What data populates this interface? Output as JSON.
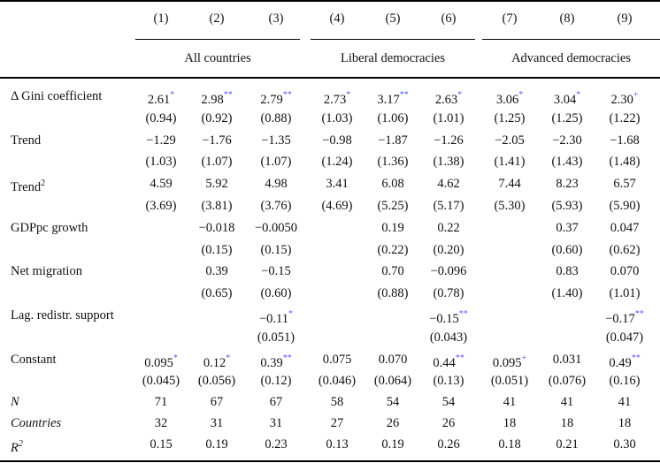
{
  "table": {
    "column_numbers": [
      "(1)",
      "(2)",
      "(3)",
      "(4)",
      "(5)",
      "(6)",
      "(7)",
      "(8)",
      "(9)"
    ],
    "column_groups": [
      {
        "label": "All countries",
        "columns": [
          1,
          2,
          3
        ]
      },
      {
        "label": "Liberal democracies",
        "columns": [
          4,
          5,
          6
        ]
      },
      {
        "label": "Advanced democracies",
        "columns": [
          7,
          8,
          9
        ]
      }
    ],
    "significance_color": "#5a5aff",
    "rows": [
      {
        "label": "Δ Gini coefficient",
        "coef": [
          "2.61",
          "2.98",
          "2.79",
          "2.73",
          "3.17",
          "2.63",
          "3.06",
          "3.04",
          "2.30"
        ],
        "stars": [
          "*",
          "**",
          "**",
          "*",
          "**",
          "*",
          "*",
          "*",
          "+"
        ],
        "se": [
          "(0.94)",
          "(0.92)",
          "(0.88)",
          "(1.03)",
          "(1.06)",
          "(1.01)",
          "(1.25)",
          "(1.25)",
          "(1.22)"
        ]
      },
      {
        "label": "Trend",
        "coef": [
          "−1.29",
          "−1.76",
          "−1.35",
          "−0.98",
          "−1.87",
          "−1.26",
          "−2.05",
          "−2.30",
          "−1.68"
        ],
        "stars": [
          "",
          "",
          "",
          "",
          "",
          "",
          "",
          "",
          ""
        ],
        "se": [
          "(1.03)",
          "(1.07)",
          "(1.07)",
          "(1.24)",
          "(1.36)",
          "(1.38)",
          "(1.41)",
          "(1.43)",
          "(1.48)"
        ]
      },
      {
        "label": "Trend",
        "label_sup": "2",
        "coef": [
          "4.59",
          "5.92",
          "4.98",
          "3.41",
          "6.08",
          "4.62",
          "7.44",
          "8.23",
          "6.57"
        ],
        "stars": [
          "",
          "",
          "",
          "",
          "",
          "",
          "",
          "",
          ""
        ],
        "se": [
          "(3.69)",
          "(3.81)",
          "(3.76)",
          "(4.69)",
          "(5.25)",
          "(5.17)",
          "(5.30)",
          "(5.93)",
          "(5.90)"
        ]
      },
      {
        "label": "GDPpc growth",
        "coef": [
          "",
          "−0.018",
          "−0.0050",
          "",
          "0.19",
          "0.22",
          "",
          "0.37",
          "0.047"
        ],
        "stars": [
          "",
          "",
          "",
          "",
          "",
          "",
          "",
          "",
          ""
        ],
        "se": [
          "",
          "(0.15)",
          "(0.15)",
          "",
          "(0.22)",
          "(0.20)",
          "",
          "(0.60)",
          "(0.62)"
        ]
      },
      {
        "label": "Net migration",
        "coef": [
          "",
          "0.39",
          "−0.15",
          "",
          "0.70",
          "−0.096",
          "",
          "0.83",
          "0.070"
        ],
        "stars": [
          "",
          "",
          "",
          "",
          "",
          "",
          "",
          "",
          ""
        ],
        "se": [
          "",
          "(0.65)",
          "(0.60)",
          "",
          "(0.88)",
          "(0.78)",
          "",
          "(1.40)",
          "(1.01)"
        ]
      },
      {
        "label": "Lag. redistr. support",
        "coef": [
          "",
          "",
          "−0.11",
          "",
          "",
          "−0.15",
          "",
          "",
          "−0.17"
        ],
        "stars": [
          "",
          "",
          "*",
          "",
          "",
          "**",
          "",
          "",
          "**"
        ],
        "se": [
          "",
          "",
          "(0.051)",
          "",
          "",
          "(0.043)",
          "",
          "",
          "(0.047)"
        ]
      },
      {
        "label": "Constant",
        "coef": [
          "0.095",
          "0.12",
          "0.39",
          "0.075",
          "0.070",
          "0.44",
          "0.095",
          "0.031",
          "0.49"
        ],
        "stars": [
          "*",
          "*",
          "**",
          "",
          "",
          "**",
          "+",
          "",
          "**"
        ],
        "se": [
          "(0.045)",
          "(0.056)",
          "(0.12)",
          "(0.046)",
          "(0.064)",
          "(0.13)",
          "(0.051)",
          "(0.076)",
          "(0.16)"
        ]
      }
    ],
    "stats": [
      {
        "label": "N",
        "italic": true,
        "values": [
          "71",
          "67",
          "67",
          "58",
          "54",
          "54",
          "41",
          "41",
          "41"
        ]
      },
      {
        "label": "Countries",
        "italic": true,
        "values": [
          "32",
          "31",
          "31",
          "27",
          "26",
          "26",
          "18",
          "18",
          "18"
        ]
      },
      {
        "label": "R",
        "label_sup": "2",
        "italic": true,
        "values": [
          "0.15",
          "0.19",
          "0.23",
          "0.13",
          "0.19",
          "0.26",
          "0.18",
          "0.21",
          "0.30"
        ]
      }
    ]
  }
}
